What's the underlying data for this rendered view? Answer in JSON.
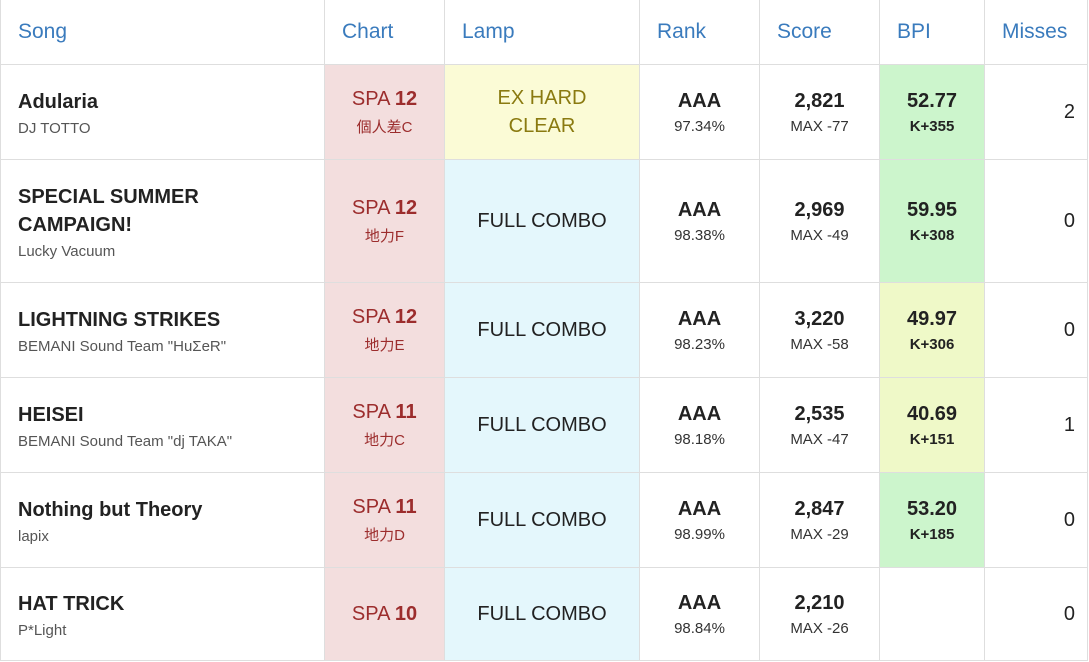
{
  "headers": {
    "song": "Song",
    "chart": "Chart",
    "lamp": "Lamp",
    "rank": "Rank",
    "score": "Score",
    "bpi": "BPI",
    "misses": "Misses"
  },
  "rows": [
    {
      "title": "Adularia",
      "artist": "DJ TOTTO",
      "chart_prefix": "SPA",
      "chart_level": "12",
      "chart_tier": "個人差C",
      "lamp_line1": "EX HARD",
      "lamp_line2": "CLEAR",
      "lamp_type": "exhard",
      "rank": "AAA",
      "percent": "97.34%",
      "score": "2,821",
      "max_diff": "MAX -77",
      "bpi": "52.77",
      "kaiden_diff": "K+355",
      "bpi_color": "#ccf5cc",
      "misses": "2"
    },
    {
      "title": "SPECIAL SUMMER CAMPAIGN!",
      "artist": "Lucky Vacuum",
      "chart_prefix": "SPA",
      "chart_level": "12",
      "chart_tier": "地力F",
      "lamp_line1": "FULL COMBO",
      "lamp_line2": "",
      "lamp_type": "fc",
      "rank": "AAA",
      "percent": "98.38%",
      "score": "2,969",
      "max_diff": "MAX -49",
      "bpi": "59.95",
      "kaiden_diff": "K+308",
      "bpi_color": "#ccf5cc",
      "misses": "0"
    },
    {
      "title": "LIGHTNING STRIKES",
      "artist": "BEMANI Sound Team \"HuΣeR\"",
      "chart_prefix": "SPA",
      "chart_level": "12",
      "chart_tier": "地力E",
      "lamp_line1": "FULL COMBO",
      "lamp_line2": "",
      "lamp_type": "fc",
      "rank": "AAA",
      "percent": "98.23%",
      "score": "3,220",
      "max_diff": "MAX -58",
      "bpi": "49.97",
      "kaiden_diff": "K+306",
      "bpi_color": "#eff9c8",
      "misses": "0"
    },
    {
      "title": "HEISEI",
      "artist": "BEMANI Sound Team \"dj TAKA\"",
      "chart_prefix": "SPA",
      "chart_level": "11",
      "chart_tier": "地力C",
      "lamp_line1": "FULL COMBO",
      "lamp_line2": "",
      "lamp_type": "fc",
      "rank": "AAA",
      "percent": "98.18%",
      "score": "2,535",
      "max_diff": "MAX -47",
      "bpi": "40.69",
      "kaiden_diff": "K+151",
      "bpi_color": "#eff9c8",
      "misses": "1"
    },
    {
      "title": "Nothing but Theory",
      "artist": "lapix",
      "chart_prefix": "SPA",
      "chart_level": "11",
      "chart_tier": "地力D",
      "lamp_line1": "FULL COMBO",
      "lamp_line2": "",
      "lamp_type": "fc",
      "rank": "AAA",
      "percent": "98.99%",
      "score": "2,847",
      "max_diff": "MAX -29",
      "bpi": "53.20",
      "kaiden_diff": "K+185",
      "bpi_color": "#ccf5cc",
      "misses": "0"
    },
    {
      "title": "HAT TRICK",
      "artist": "P*Light",
      "chart_prefix": "SPA",
      "chart_level": "10",
      "chart_tier": "",
      "lamp_line1": "FULL COMBO",
      "lamp_line2": "",
      "lamp_type": "fc",
      "rank": "AAA",
      "percent": "98.84%",
      "score": "2,210",
      "max_diff": "MAX -26",
      "bpi": "",
      "kaiden_diff": "",
      "bpi_color": "#ffffff",
      "misses": "0"
    }
  ]
}
